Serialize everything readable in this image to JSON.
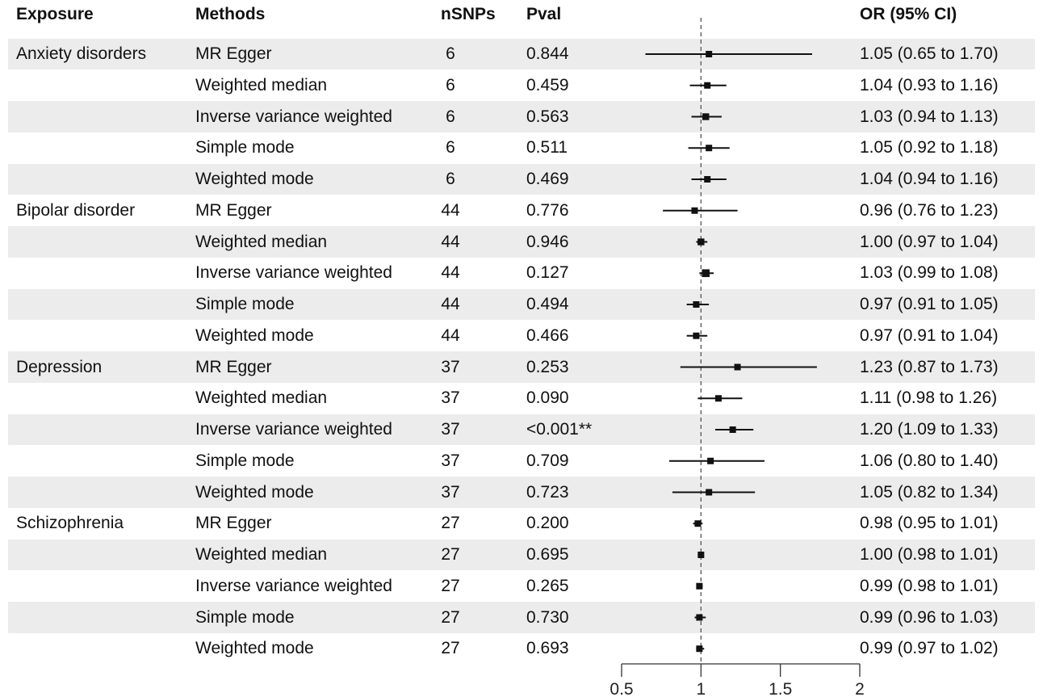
{
  "headers": {
    "exposure": "Exposure",
    "methods": "Methods",
    "nsnps": "nSNPs",
    "pval": "Pval",
    "or": "OR (95% CI)"
  },
  "rows": [
    {
      "exposure": "Anxiety disorders",
      "method": "MR Egger",
      "nsnps": "6",
      "pval": "0.844",
      "or_text": "1.05 (0.65 to 1.70)"
    },
    {
      "exposure": "",
      "method": "Weighted median",
      "nsnps": "6",
      "pval": "0.459",
      "or_text": "1.04 (0.93 to 1.16)"
    },
    {
      "exposure": "",
      "method": "Inverse variance weighted",
      "nsnps": "6",
      "pval": "0.563",
      "or_text": "1.03 (0.94 to 1.13)"
    },
    {
      "exposure": "",
      "method": "Simple mode",
      "nsnps": "6",
      "pval": "0.511",
      "or_text": "1.05 (0.92 to 1.18)"
    },
    {
      "exposure": "",
      "method": "Weighted mode",
      "nsnps": "6",
      "pval": "0.469",
      "or_text": "1.04 (0.94 to 1.16)"
    },
    {
      "exposure": "Bipolar disorder",
      "method": "MR Egger",
      "nsnps": "44",
      "pval": "0.776",
      "or_text": "0.96 (0.76 to 1.23)"
    },
    {
      "exposure": "",
      "method": "Weighted median",
      "nsnps": "44",
      "pval": "0.946",
      "or_text": "1.00 (0.97 to 1.04)"
    },
    {
      "exposure": "",
      "method": "Inverse variance weighted",
      "nsnps": "44",
      "pval": "0.127",
      "or_text": "1.03 (0.99 to 1.08)"
    },
    {
      "exposure": "",
      "method": "Simple mode",
      "nsnps": "44",
      "pval": "0.494",
      "or_text": "0.97 (0.91 to 1.05)"
    },
    {
      "exposure": "",
      "method": "Weighted mode",
      "nsnps": "44",
      "pval": "0.466",
      "or_text": "0.97 (0.91 to 1.04)"
    },
    {
      "exposure": "Depression",
      "method": "MR Egger",
      "nsnps": "37",
      "pval": "0.253",
      "or_text": "1.23 (0.87 to 1.73)"
    },
    {
      "exposure": "",
      "method": "Weighted median",
      "nsnps": "37",
      "pval": "0.090",
      "or_text": "1.11 (0.98 to 1.26)"
    },
    {
      "exposure": "",
      "method": "Inverse variance weighted",
      "nsnps": "37",
      "pval": "<0.001**",
      "or_text": "1.20 (1.09 to 1.33)"
    },
    {
      "exposure": "",
      "method": "Simple mode",
      "nsnps": "37",
      "pval": "0.709",
      "or_text": "1.06 (0.80 to 1.40)"
    },
    {
      "exposure": "",
      "method": "Weighted mode",
      "nsnps": "37",
      "pval": "0.723",
      "or_text": "1.05 (0.82 to 1.34)"
    },
    {
      "exposure": "Schizophrenia",
      "method": "MR Egger",
      "nsnps": "27",
      "pval": "0.200",
      "or_text": "0.98 (0.95 to 1.01)"
    },
    {
      "exposure": "",
      "method": "Weighted median",
      "nsnps": "27",
      "pval": "0.695",
      "or_text": "1.00 (0.98 to 1.01)"
    },
    {
      "exposure": "",
      "method": "Inverse variance weighted",
      "nsnps": "27",
      "pval": "0.265",
      "or_text": "0.99 (0.98 to 1.01)"
    },
    {
      "exposure": "",
      "method": "Simple mode",
      "nsnps": "27",
      "pval": "0.730",
      "or_text": "0.99 (0.96 to 1.03)"
    },
    {
      "exposure": "",
      "method": "Weighted mode",
      "nsnps": "27",
      "pval": "0.693",
      "or_text": "0.99 (0.97 to 1.02)"
    }
  ],
  "chart_data": {
    "type": "scatter",
    "subtype": "forest plot",
    "xlim": [
      0.5,
      2
    ],
    "xticks": [
      0.5,
      1,
      1.5,
      2
    ],
    "xtick_labels": [
      "0.5",
      "1",
      "1.5",
      "2"
    ],
    "reference_line": 1,
    "row_shading": "alternating",
    "colors": {
      "point": "#111111",
      "line": "#111111",
      "shade": "#ececec",
      "reference": "#555555"
    },
    "points": [
      {
        "or": 1.05,
        "lo": 0.65,
        "hi": 1.7,
        "size": 1.0
      },
      {
        "or": 1.04,
        "lo": 0.93,
        "hi": 1.16,
        "size": 1.0
      },
      {
        "or": 1.03,
        "lo": 0.94,
        "hi": 1.13,
        "size": 1.05
      },
      {
        "or": 1.05,
        "lo": 0.92,
        "hi": 1.18,
        "size": 1.0
      },
      {
        "or": 1.04,
        "lo": 0.94,
        "hi": 1.16,
        "size": 1.0
      },
      {
        "or": 0.96,
        "lo": 0.76,
        "hi": 1.23,
        "size": 1.0
      },
      {
        "or": 1.0,
        "lo": 0.97,
        "hi": 1.04,
        "size": 1.05
      },
      {
        "or": 1.03,
        "lo": 0.99,
        "hi": 1.08,
        "size": 1.2
      },
      {
        "or": 0.97,
        "lo": 0.91,
        "hi": 1.05,
        "size": 1.0
      },
      {
        "or": 0.97,
        "lo": 0.91,
        "hi": 1.04,
        "size": 1.0
      },
      {
        "or": 1.23,
        "lo": 0.87,
        "hi": 1.73,
        "size": 1.0
      },
      {
        "or": 1.11,
        "lo": 0.98,
        "hi": 1.26,
        "size": 1.0
      },
      {
        "or": 1.2,
        "lo": 1.09,
        "hi": 1.33,
        "size": 1.0
      },
      {
        "or": 1.06,
        "lo": 0.8,
        "hi": 1.4,
        "size": 1.0
      },
      {
        "or": 1.05,
        "lo": 0.82,
        "hi": 1.34,
        "size": 1.0
      },
      {
        "or": 0.98,
        "lo": 0.95,
        "hi": 1.01,
        "size": 1.0
      },
      {
        "or": 1.0,
        "lo": 0.98,
        "hi": 1.01,
        "size": 1.0
      },
      {
        "or": 0.99,
        "lo": 0.98,
        "hi": 1.01,
        "size": 1.0
      },
      {
        "or": 0.99,
        "lo": 0.96,
        "hi": 1.03,
        "size": 1.0
      },
      {
        "or": 0.99,
        "lo": 0.97,
        "hi": 1.02,
        "size": 1.0
      }
    ]
  }
}
